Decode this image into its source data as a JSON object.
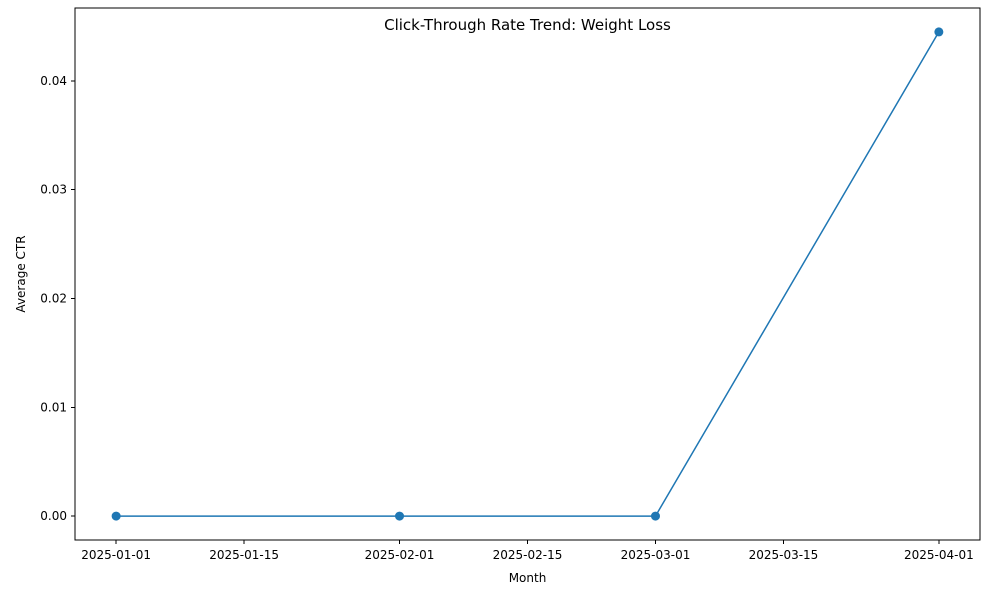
{
  "chart_data": {
    "type": "line",
    "title": "Click-Through Rate Trend: Weight Loss",
    "xlabel": "Month",
    "ylabel": "Average CTR",
    "x_tick_labels": [
      "2025-01-01",
      "2025-01-15",
      "2025-02-01",
      "2025-02-15",
      "2025-03-01",
      "2025-03-15",
      "2025-04-01"
    ],
    "y_tick_labels": [
      "0.00",
      "0.01",
      "0.02",
      "0.03",
      "0.04"
    ],
    "ylim": [
      -0.0022,
      0.0467
    ],
    "grid": false,
    "series": [
      {
        "color": "#1f77b4",
        "marker": "circle",
        "x": [
          "2025-01-01",
          "2025-02-01",
          "2025-03-01",
          "2025-04-01"
        ],
        "y": [
          0.0,
          0.0,
          0.0,
          0.0445
        ]
      }
    ]
  }
}
